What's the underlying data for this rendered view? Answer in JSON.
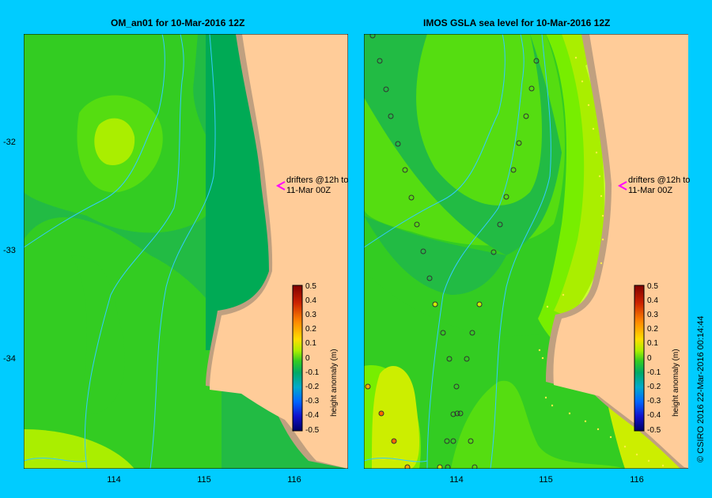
{
  "panels": [
    {
      "title": "OM_an01  for 10-Mar-2016 12Z"
    },
    {
      "title": "IMOS GSLA sea level  for 10-Mar-2016 12Z"
    }
  ],
  "y_ticks": [
    "-32",
    "-33",
    "-34"
  ],
  "x_ticks": [
    "114",
    "115",
    "116"
  ],
  "annotation": {
    "line1": "drifters @12h to",
    "line2": "11-Mar 00Z"
  },
  "colorbar": {
    "label": "height anomaly (m)",
    "ticks": [
      "0.5",
      "0.4",
      "0.3",
      "0.2",
      "0.1",
      "0",
      "-0.1",
      "-0.2",
      "-0.3",
      "-0.4",
      "-0.5"
    ]
  },
  "credit": "© CSIRO 2016   22-Mar-2016 00:14:44",
  "colors": {
    "background": "#00ccff",
    "land": "#ffcc99",
    "shelf": "#c0a080",
    "drifter_marker": "#ff00ff",
    "isobath": "#33ccff"
  },
  "icons": [
    "drifter-arrow-icon",
    "observation-point-icon"
  ]
}
